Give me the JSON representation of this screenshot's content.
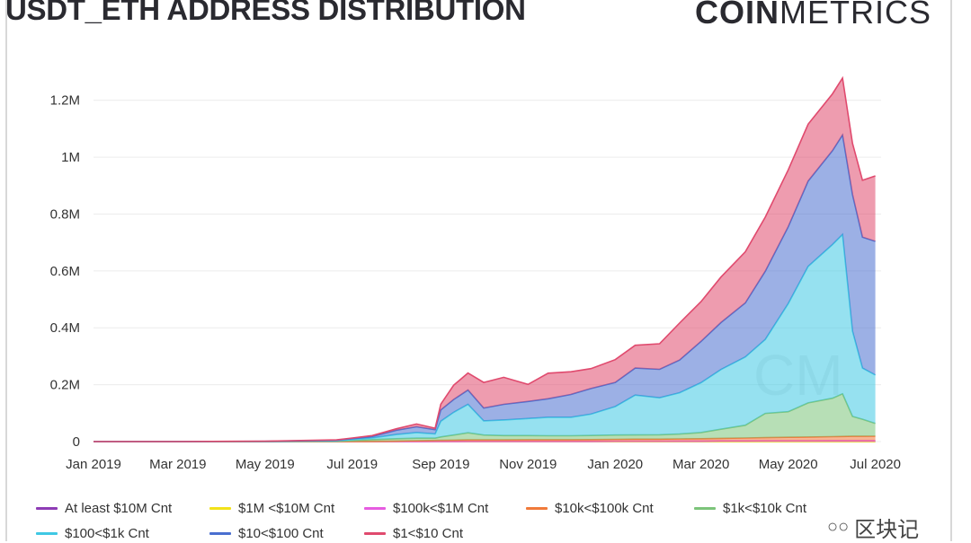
{
  "header": {
    "title": "USDT_ETH ADDRESS DISTRIBUTION",
    "brand_bold": "COIN",
    "brand_light": "METRICS"
  },
  "watermark": {
    "text": "区块记",
    "icon": "wechat-icon"
  },
  "chart_data": {
    "type": "area",
    "stacked": true,
    "grid": true,
    "legend_position": "bottom",
    "ylim": [
      0,
      1300000
    ],
    "y_ticks": [
      {
        "value": 0,
        "label": "0"
      },
      {
        "value": 200000,
        "label": "0.2M"
      },
      {
        "value": 400000,
        "label": "0.4M"
      },
      {
        "value": 600000,
        "label": "0.6M"
      },
      {
        "value": 800000,
        "label": "0.8M"
      },
      {
        "value": 1000000,
        "label": "1M"
      },
      {
        "value": 1200000,
        "label": "1.2M"
      }
    ],
    "x_ticks": [
      {
        "label": "Jan 2019",
        "x": "2019-01-01"
      },
      {
        "label": "Mar 2019",
        "x": "2019-03-01"
      },
      {
        "label": "May 2019",
        "x": "2019-05-01"
      },
      {
        "label": "Jul 2019",
        "x": "2019-07-01"
      },
      {
        "label": "Sep 2019",
        "x": "2019-09-01"
      },
      {
        "label": "Nov 2019",
        "x": "2019-11-01"
      },
      {
        "label": "Jan 2020",
        "x": "2020-01-01"
      },
      {
        "label": "Mar 2020",
        "x": "2020-03-01"
      },
      {
        "label": "May 2020",
        "x": "2020-05-01"
      },
      {
        "label": "Jul 2020",
        "x": "2020-07-01"
      }
    ],
    "x": [
      "2019-01-01",
      "2019-03-01",
      "2019-05-01",
      "2019-06-20",
      "2019-07-01",
      "2019-07-15",
      "2019-08-01",
      "2019-08-15",
      "2019-08-28",
      "2019-09-01",
      "2019-09-10",
      "2019-09-20",
      "2019-10-01",
      "2019-10-15",
      "2019-11-01",
      "2019-11-15",
      "2019-12-01",
      "2019-12-15",
      "2020-01-01",
      "2020-01-15",
      "2020-02-01",
      "2020-02-15",
      "2020-03-01",
      "2020-03-15",
      "2020-04-01",
      "2020-04-15",
      "2020-05-01",
      "2020-05-15",
      "2020-06-01",
      "2020-06-08",
      "2020-06-15",
      "2020-06-22",
      "2020-07-01"
    ],
    "series": [
      {
        "name": "At least $10M Cnt",
        "color": "#8e3cb5",
        "values": [
          0,
          0,
          0,
          0,
          0,
          0,
          0,
          0,
          0,
          0,
          0,
          0,
          0,
          0,
          0,
          0,
          0,
          0,
          0,
          0,
          0,
          0,
          0,
          0,
          0,
          0,
          0,
          0,
          0,
          0,
          0,
          0,
          0
        ]
      },
      {
        "name": "$1M <$10M Cnt",
        "color": "#f2e21a",
        "values": [
          0,
          0,
          0,
          0,
          0,
          0,
          0,
          0,
          0,
          0,
          0,
          0,
          0,
          0,
          0,
          0,
          0,
          0,
          0,
          0,
          0,
          0,
          0,
          0,
          0,
          0,
          0,
          0,
          0,
          0,
          0,
          0,
          0
        ]
      },
      {
        "name": "$100k<$1M Cnt",
        "color": "#e65ce0",
        "values": [
          0,
          0,
          0,
          0,
          0,
          0,
          0,
          0,
          500,
          500,
          500,
          1000,
          1000,
          1000,
          1000,
          1000,
          1000,
          1000,
          1500,
          1500,
          1500,
          2000,
          2000,
          2500,
          2500,
          3000,
          3000,
          3000,
          3500,
          3500,
          3500,
          3500,
          3500
        ]
      },
      {
        "name": "$10k<$100k Cnt",
        "color": "#f07a3a",
        "values": [
          0,
          0,
          0,
          0,
          500,
          1000,
          2000,
          3000,
          3500,
          4000,
          4500,
          5000,
          5000,
          5000,
          5500,
          5500,
          5500,
          6000,
          6500,
          7000,
          7000,
          7500,
          8000,
          9000,
          10000,
          11000,
          12000,
          13000,
          14000,
          14500,
          15000,
          15000,
          15500
        ]
      },
      {
        "name": "$1k<$10k Cnt",
        "color": "#7cc47a",
        "values": [
          0,
          0,
          0,
          1000,
          3000,
          6000,
          8000,
          9000,
          8000,
          12000,
          18000,
          25000,
          17000,
          15000,
          14500,
          14000,
          14000,
          14500,
          15000,
          15000,
          15500,
          17000,
          22000,
          32000,
          45000,
          85000,
          90000,
          120000,
          135000,
          150000,
          70000,
          60000,
          45000
        ]
      },
      {
        "name": "$100<$1k Cnt",
        "color": "#3fc8e4",
        "values": [
          0,
          0,
          500,
          2000,
          4000,
          6000,
          15000,
          20000,
          15000,
          55000,
          80000,
          100000,
          50000,
          55000,
          60000,
          65000,
          65000,
          75000,
          100000,
          140000,
          130000,
          145000,
          175000,
          210000,
          240000,
          260000,
          380000,
          480000,
          540000,
          560000,
          300000,
          180000,
          170000
        ]
      },
      {
        "name": "$10<$100 Cnt",
        "color": "#4a6fd0",
        "values": [
          0,
          0,
          500,
          1500,
          3000,
          5000,
          15000,
          20000,
          15000,
          40000,
          45000,
          50000,
          45000,
          55000,
          60000,
          65000,
          80000,
          90000,
          85000,
          95000,
          100000,
          115000,
          145000,
          165000,
          190000,
          240000,
          270000,
          300000,
          330000,
          350000,
          480000,
          460000,
          470000
        ]
      },
      {
        "name": "$1<$10 Cnt",
        "color": "#e04a6e",
        "values": [
          0,
          0,
          500,
          1500,
          2000,
          3000,
          5000,
          10000,
          5000,
          20000,
          50000,
          60000,
          90000,
          95000,
          60000,
          90000,
          80000,
          70000,
          80000,
          80000,
          90000,
          130000,
          140000,
          160000,
          180000,
          190000,
          200000,
          200000,
          200000,
          200000,
          180000,
          200000,
          230000
        ]
      }
    ]
  }
}
